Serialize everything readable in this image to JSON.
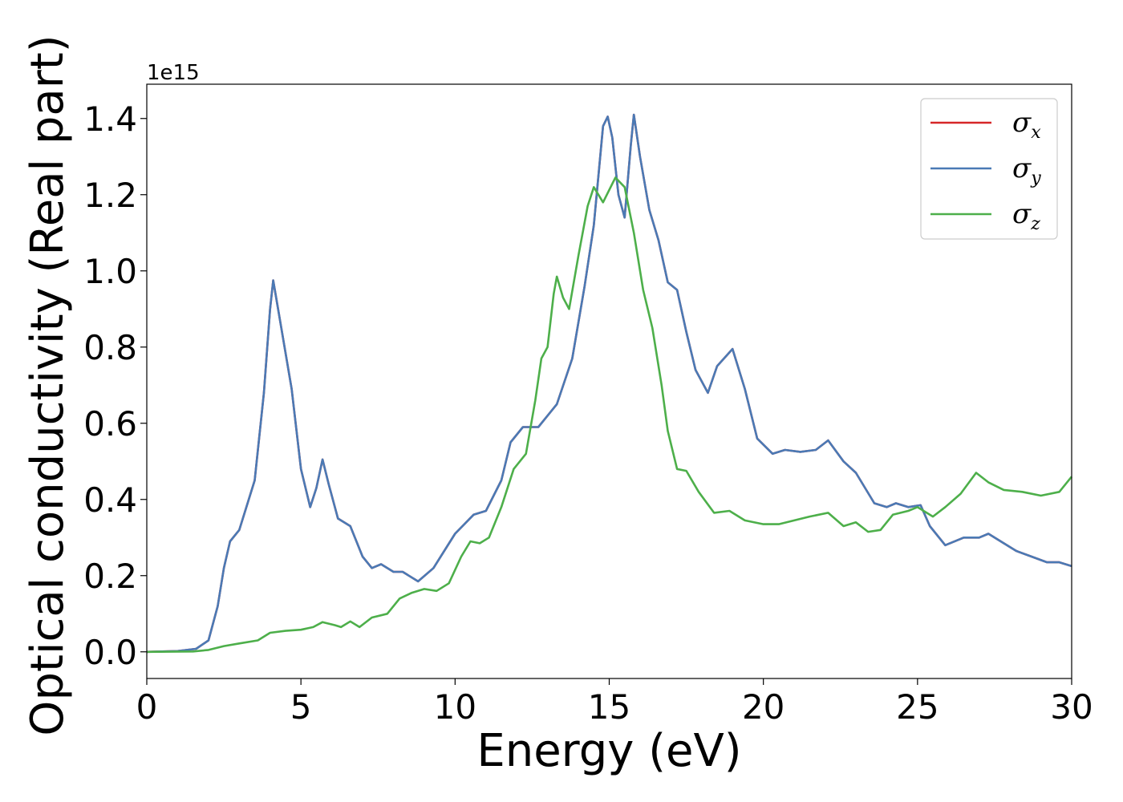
{
  "chart_data": {
    "type": "line",
    "xlabel": "Energy (eV)",
    "ylabel": "Optical conductivity (Real part)",
    "y_offset_text": "1e15",
    "xlim": [
      0,
      30
    ],
    "ylim": [
      -0.07,
      1.49
    ],
    "x_ticks": [
      "0",
      "5",
      "10",
      "15",
      "20",
      "25",
      "30"
    ],
    "x_tick_values": [
      0,
      5,
      10,
      15,
      20,
      25,
      30
    ],
    "y_ticks": [
      "0.0",
      "0.2",
      "0.4",
      "0.6",
      "0.8",
      "1.0",
      "1.2",
      "1.4"
    ],
    "y_tick_values": [
      0,
      0.2,
      0.4,
      0.6,
      0.8,
      1.0,
      1.2,
      1.4
    ],
    "grid": false,
    "legend_position": "top-right",
    "series": [
      {
        "name": "σx",
        "symbol": "σ",
        "subscript": "x",
        "color": "#d62728",
        "points": [
          [
            0,
            0
          ],
          [
            1,
            0.002
          ],
          [
            1.6,
            0.008
          ],
          [
            2,
            0.03
          ],
          [
            2.3,
            0.12
          ],
          [
            2.5,
            0.22
          ],
          [
            2.7,
            0.29
          ],
          [
            3,
            0.32
          ],
          [
            3.5,
            0.45
          ],
          [
            3.8,
            0.68
          ],
          [
            4,
            0.9
          ],
          [
            4.1,
            0.975
          ],
          [
            4.3,
            0.88
          ],
          [
            4.7,
            0.69
          ],
          [
            5,
            0.48
          ],
          [
            5.3,
            0.38
          ],
          [
            5.5,
            0.43
          ],
          [
            5.7,
            0.505
          ],
          [
            5.9,
            0.44
          ],
          [
            6.2,
            0.35
          ],
          [
            6.6,
            0.33
          ],
          [
            7,
            0.25
          ],
          [
            7.3,
            0.22
          ],
          [
            7.6,
            0.23
          ],
          [
            8,
            0.21
          ],
          [
            8.3,
            0.21
          ],
          [
            8.8,
            0.185
          ],
          [
            9.3,
            0.22
          ],
          [
            10,
            0.31
          ],
          [
            10.6,
            0.36
          ],
          [
            11,
            0.37
          ],
          [
            11.5,
            0.45
          ],
          [
            11.8,
            0.55
          ],
          [
            12.2,
            0.59
          ],
          [
            12.7,
            0.59
          ],
          [
            13,
            0.62
          ],
          [
            13.3,
            0.65
          ],
          [
            13.8,
            0.77
          ],
          [
            14.2,
            0.96
          ],
          [
            14.5,
            1.12
          ],
          [
            14.8,
            1.38
          ],
          [
            14.95,
            1.405
          ],
          [
            15.1,
            1.35
          ],
          [
            15.3,
            1.2
          ],
          [
            15.5,
            1.14
          ],
          [
            15.7,
            1.33
          ],
          [
            15.8,
            1.41
          ],
          [
            16,
            1.3
          ],
          [
            16.3,
            1.16
          ],
          [
            16.6,
            1.08
          ],
          [
            16.9,
            0.97
          ],
          [
            17.2,
            0.95
          ],
          [
            17.5,
            0.84
          ],
          [
            17.8,
            0.74
          ],
          [
            18.2,
            0.68
          ],
          [
            18.5,
            0.75
          ],
          [
            19,
            0.795
          ],
          [
            19.4,
            0.69
          ],
          [
            19.8,
            0.56
          ],
          [
            20.3,
            0.52
          ],
          [
            20.7,
            0.53
          ],
          [
            21.2,
            0.525
          ],
          [
            21.7,
            0.53
          ],
          [
            22.1,
            0.555
          ],
          [
            22.6,
            0.5
          ],
          [
            23,
            0.47
          ],
          [
            23.3,
            0.43
          ],
          [
            23.6,
            0.39
          ],
          [
            24,
            0.38
          ],
          [
            24.3,
            0.39
          ],
          [
            24.7,
            0.38
          ],
          [
            25.1,
            0.385
          ],
          [
            25.4,
            0.33
          ],
          [
            25.9,
            0.28
          ],
          [
            26.5,
            0.3
          ],
          [
            27,
            0.3
          ],
          [
            27.3,
            0.31
          ],
          [
            27.8,
            0.285
          ],
          [
            28.2,
            0.265
          ],
          [
            28.7,
            0.25
          ],
          [
            29.2,
            0.235
          ],
          [
            29.6,
            0.235
          ],
          [
            30,
            0.225
          ]
        ]
      },
      {
        "name": "σy",
        "symbol": "σ",
        "subscript": "y",
        "color": "#4a7ab5",
        "points": [
          [
            0,
            0
          ],
          [
            1,
            0.002
          ],
          [
            1.6,
            0.008
          ],
          [
            2,
            0.03
          ],
          [
            2.3,
            0.12
          ],
          [
            2.5,
            0.22
          ],
          [
            2.7,
            0.29
          ],
          [
            3,
            0.32
          ],
          [
            3.5,
            0.45
          ],
          [
            3.8,
            0.68
          ],
          [
            4,
            0.9
          ],
          [
            4.1,
            0.975
          ],
          [
            4.3,
            0.88
          ],
          [
            4.7,
            0.69
          ],
          [
            5,
            0.48
          ],
          [
            5.3,
            0.38
          ],
          [
            5.5,
            0.43
          ],
          [
            5.7,
            0.505
          ],
          [
            5.9,
            0.44
          ],
          [
            6.2,
            0.35
          ],
          [
            6.6,
            0.33
          ],
          [
            7,
            0.25
          ],
          [
            7.3,
            0.22
          ],
          [
            7.6,
            0.23
          ],
          [
            8,
            0.21
          ],
          [
            8.3,
            0.21
          ],
          [
            8.8,
            0.185
          ],
          [
            9.3,
            0.22
          ],
          [
            10,
            0.31
          ],
          [
            10.6,
            0.36
          ],
          [
            11,
            0.37
          ],
          [
            11.5,
            0.45
          ],
          [
            11.8,
            0.55
          ],
          [
            12.2,
            0.59
          ],
          [
            12.7,
            0.59
          ],
          [
            13,
            0.62
          ],
          [
            13.3,
            0.65
          ],
          [
            13.8,
            0.77
          ],
          [
            14.2,
            0.96
          ],
          [
            14.5,
            1.12
          ],
          [
            14.8,
            1.38
          ],
          [
            14.95,
            1.405
          ],
          [
            15.1,
            1.35
          ],
          [
            15.3,
            1.2
          ],
          [
            15.5,
            1.14
          ],
          [
            15.7,
            1.33
          ],
          [
            15.8,
            1.41
          ],
          [
            16,
            1.3
          ],
          [
            16.3,
            1.16
          ],
          [
            16.6,
            1.08
          ],
          [
            16.9,
            0.97
          ],
          [
            17.2,
            0.95
          ],
          [
            17.5,
            0.84
          ],
          [
            17.8,
            0.74
          ],
          [
            18.2,
            0.68
          ],
          [
            18.5,
            0.75
          ],
          [
            19,
            0.795
          ],
          [
            19.4,
            0.69
          ],
          [
            19.8,
            0.56
          ],
          [
            20.3,
            0.52
          ],
          [
            20.7,
            0.53
          ],
          [
            21.2,
            0.525
          ],
          [
            21.7,
            0.53
          ],
          [
            22.1,
            0.555
          ],
          [
            22.6,
            0.5
          ],
          [
            23,
            0.47
          ],
          [
            23.3,
            0.43
          ],
          [
            23.6,
            0.39
          ],
          [
            24,
            0.38
          ],
          [
            24.3,
            0.39
          ],
          [
            24.7,
            0.38
          ],
          [
            25.1,
            0.385
          ],
          [
            25.4,
            0.33
          ],
          [
            25.9,
            0.28
          ],
          [
            26.5,
            0.3
          ],
          [
            27,
            0.3
          ],
          [
            27.3,
            0.31
          ],
          [
            27.8,
            0.285
          ],
          [
            28.2,
            0.265
          ],
          [
            28.7,
            0.25
          ],
          [
            29.2,
            0.235
          ],
          [
            29.6,
            0.235
          ],
          [
            30,
            0.225
          ]
        ]
      },
      {
        "name": "σz",
        "symbol": "σ",
        "subscript": "z",
        "color": "#4daf4a",
        "points": [
          [
            0,
            0
          ],
          [
            1.5,
            0.001
          ],
          [
            2,
            0.005
          ],
          [
            2.5,
            0.015
          ],
          [
            3,
            0.022
          ],
          [
            3.6,
            0.03
          ],
          [
            4,
            0.05
          ],
          [
            4.5,
            0.055
          ],
          [
            5,
            0.058
          ],
          [
            5.4,
            0.065
          ],
          [
            5.7,
            0.078
          ],
          [
            6.1,
            0.07
          ],
          [
            6.3,
            0.065
          ],
          [
            6.6,
            0.08
          ],
          [
            6.9,
            0.065
          ],
          [
            7.3,
            0.09
          ],
          [
            7.8,
            0.1
          ],
          [
            8.2,
            0.14
          ],
          [
            8.6,
            0.155
          ],
          [
            9,
            0.165
          ],
          [
            9.4,
            0.16
          ],
          [
            9.8,
            0.18
          ],
          [
            10.2,
            0.25
          ],
          [
            10.5,
            0.29
          ],
          [
            10.8,
            0.285
          ],
          [
            11.1,
            0.3
          ],
          [
            11.5,
            0.38
          ],
          [
            11.9,
            0.48
          ],
          [
            12.3,
            0.52
          ],
          [
            12.6,
            0.66
          ],
          [
            12.8,
            0.77
          ],
          [
            13,
            0.8
          ],
          [
            13.2,
            0.94
          ],
          [
            13.3,
            0.985
          ],
          [
            13.5,
            0.93
          ],
          [
            13.7,
            0.9
          ],
          [
            14,
            1.04
          ],
          [
            14.3,
            1.17
          ],
          [
            14.5,
            1.22
          ],
          [
            14.8,
            1.18
          ],
          [
            15.2,
            1.245
          ],
          [
            15.5,
            1.22
          ],
          [
            15.8,
            1.1
          ],
          [
            16.1,
            0.95
          ],
          [
            16.4,
            0.85
          ],
          [
            16.7,
            0.7
          ],
          [
            16.9,
            0.58
          ],
          [
            17.2,
            0.48
          ],
          [
            17.5,
            0.475
          ],
          [
            17.9,
            0.42
          ],
          [
            18.4,
            0.365
          ],
          [
            18.9,
            0.37
          ],
          [
            19.4,
            0.345
          ],
          [
            20,
            0.335
          ],
          [
            20.5,
            0.335
          ],
          [
            21,
            0.345
          ],
          [
            21.5,
            0.355
          ],
          [
            22.1,
            0.365
          ],
          [
            22.6,
            0.33
          ],
          [
            23,
            0.34
          ],
          [
            23.4,
            0.315
          ],
          [
            23.8,
            0.32
          ],
          [
            24.2,
            0.36
          ],
          [
            24.7,
            0.37
          ],
          [
            25,
            0.38
          ],
          [
            25.5,
            0.355
          ],
          [
            25.9,
            0.38
          ],
          [
            26.4,
            0.415
          ],
          [
            26.9,
            0.47
          ],
          [
            27.3,
            0.445
          ],
          [
            27.8,
            0.425
          ],
          [
            28.4,
            0.42
          ],
          [
            29,
            0.41
          ],
          [
            29.6,
            0.42
          ],
          [
            30,
            0.46
          ]
        ]
      }
    ]
  }
}
